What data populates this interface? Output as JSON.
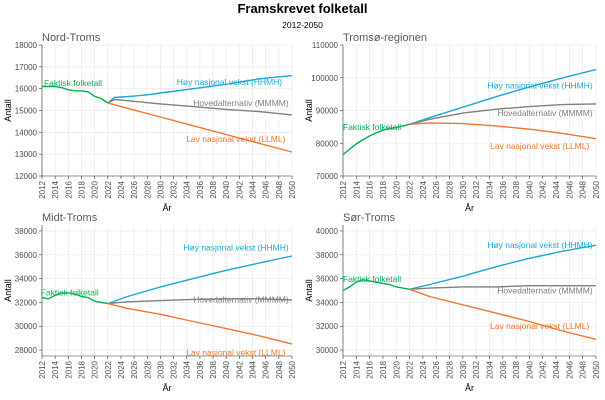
{
  "title": "Framskrevet folketall",
  "subtitle": "2012-2050",
  "colors": {
    "faktisk": "#00b050",
    "hoy": "#17a8d8",
    "hoved": "#7f7f7f",
    "lav": "#f4742b",
    "grid": "#ebebeb",
    "axis_text": "#4d4d4d",
    "panel_title": "#595959"
  },
  "chart_data": [
    {
      "type": "line",
      "title": "Nord-Troms",
      "xlabel": "År",
      "ylabel": "Antall",
      "xlim": [
        2012,
        2050
      ],
      "ylim": [
        12000,
        18000
      ],
      "x_ticks": [
        "2012",
        "2014",
        "2016",
        "2018",
        "2020",
        "2022",
        "2024",
        "2026",
        "2028",
        "2030",
        "2032",
        "2034",
        "2036",
        "2038",
        "2040",
        "2042",
        "2044",
        "2046",
        "2048",
        "2050"
      ],
      "y_ticks": [
        "12000",
        "13000",
        "14000",
        "15000",
        "16000",
        "17000",
        "18000"
      ],
      "series": [
        {
          "name": "Faktisk folketall",
          "color_key": "faktisk",
          "x": [
            2012,
            2013,
            2014,
            2015,
            2016,
            2017,
            2018,
            2019,
            2020,
            2021,
            2022
          ],
          "y": [
            16100,
            16100,
            16100,
            16050,
            15950,
            15900,
            15900,
            15850,
            15650,
            15550,
            15350
          ],
          "label_x": 2012.3,
          "label_y": 16250,
          "anchor": "start"
        },
        {
          "name": "Høy nasjonal vekst (HHMH)",
          "color_key": "hoy",
          "x": [
            2022,
            2023,
            2024,
            2026,
            2028,
            2030,
            2035,
            2040,
            2045,
            2050
          ],
          "y": [
            15350,
            15600,
            15620,
            15660,
            15720,
            15800,
            16000,
            16200,
            16450,
            16600
          ],
          "label_x": 2048.5,
          "label_y": 16300,
          "anchor": "end"
        },
        {
          "name": "Hovedalternativ (MMMM)",
          "color_key": "hoved",
          "x": [
            2022,
            2023,
            2025,
            2030,
            2035,
            2040,
            2045,
            2050
          ],
          "y": [
            15350,
            15500,
            15450,
            15300,
            15180,
            15050,
            14950,
            14800
          ],
          "label_x": 2049.5,
          "label_y": 15350,
          "anchor": "end"
        },
        {
          "name": "Lav nasjonal vekst (LLML)",
          "color_key": "lav",
          "x": [
            2022,
            2025,
            2030,
            2035,
            2040,
            2045,
            2050
          ],
          "y": [
            15350,
            15100,
            14700,
            14300,
            13900,
            13500,
            13100
          ],
          "label_x": 2049,
          "label_y": 13700,
          "anchor": "end"
        }
      ]
    },
    {
      "type": "line",
      "title": "Tromsø-regionen",
      "xlabel": "År",
      "ylabel": "Antall",
      "xlim": [
        2012,
        2050
      ],
      "ylim": [
        70000,
        110000
      ],
      "x_ticks": [
        "2012",
        "2014",
        "2016",
        "2018",
        "2020",
        "2022",
        "2024",
        "2026",
        "2028",
        "2030",
        "2032",
        "2034",
        "2036",
        "2038",
        "2040",
        "2042",
        "2044",
        "2046",
        "2048",
        "2050"
      ],
      "y_ticks": [
        "70000",
        "80000",
        "90000",
        "100000",
        "110000"
      ],
      "series": [
        {
          "name": "Faktisk folketall",
          "color_key": "faktisk",
          "x": [
            2012,
            2013,
            2014,
            2015,
            2016,
            2017,
            2018,
            2019,
            2020,
            2021,
            2022
          ],
          "y": [
            76500,
            78200,
            79800,
            81100,
            82200,
            83200,
            84000,
            84500,
            84800,
            85300,
            85800
          ],
          "label_x": 2012,
          "label_y": 85000,
          "anchor": "start"
        },
        {
          "name": "Høy nasjonal vekst (HHMH)",
          "color_key": "hoy",
          "x": [
            2022,
            2025,
            2030,
            2035,
            2040,
            2045,
            2050
          ],
          "y": [
            85800,
            87800,
            91000,
            94200,
            97200,
            100000,
            102500
          ],
          "label_x": 2049.5,
          "label_y": 97600,
          "anchor": "end"
        },
        {
          "name": "Hovedalternativ (MMMM)",
          "color_key": "hoved",
          "x": [
            2022,
            2025,
            2030,
            2035,
            2040,
            2045,
            2050
          ],
          "y": [
            85800,
            87300,
            89200,
            90400,
            91200,
            91800,
            92000
          ],
          "label_x": 2049.5,
          "label_y": 89200,
          "anchor": "end"
        },
        {
          "name": "Lav nasjonal vekst (LLML)",
          "color_key": "lav",
          "x": [
            2022,
            2025,
            2030,
            2035,
            2040,
            2045,
            2050
          ],
          "y": [
            85800,
            86200,
            86000,
            85300,
            84300,
            83000,
            81400
          ],
          "label_x": 2049,
          "label_y": 79200,
          "anchor": "end"
        }
      ]
    },
    {
      "type": "line",
      "title": "Midt-Troms",
      "xlabel": "År",
      "ylabel": "Antall",
      "xlim": [
        2012,
        2050
      ],
      "ylim": [
        27500,
        38500
      ],
      "x_ticks": [
        "2012",
        "2014",
        "2016",
        "2018",
        "2020",
        "2022",
        "2024",
        "2026",
        "2028",
        "2030",
        "2032",
        "2034",
        "2036",
        "2038",
        "2040",
        "2042",
        "2044",
        "2046",
        "2048",
        "2050"
      ],
      "y_ticks": [
        "28000",
        "30000",
        "32000",
        "34000",
        "36000",
        "38000"
      ],
      "series": [
        {
          "name": "Faktisk folketall",
          "color_key": "faktisk",
          "x": [
            2012,
            2013,
            2014,
            2015,
            2016,
            2017,
            2018,
            2019,
            2020,
            2021,
            2022
          ],
          "y": [
            32400,
            32300,
            32600,
            32800,
            32800,
            32700,
            32500,
            32400,
            32100,
            32000,
            31900
          ],
          "label_x": 2011.8,
          "label_y": 32850,
          "anchor": "start"
        },
        {
          "name": "Høy nasjonal vekst (HHMH)",
          "color_key": "hoy",
          "x": [
            2022,
            2025,
            2030,
            2035,
            2040,
            2045,
            2050
          ],
          "y": [
            31900,
            32500,
            33300,
            34000,
            34700,
            35300,
            35900
          ],
          "label_x": 2049.5,
          "label_y": 36600,
          "anchor": "end"
        },
        {
          "name": "Hovedalternativ (MMMM)",
          "color_key": "hoved",
          "x": [
            2022,
            2025,
            2030,
            2035,
            2040,
            2045,
            2050
          ],
          "y": [
            31900,
            32050,
            32150,
            32250,
            32300,
            32300,
            32200
          ],
          "label_x": 2049.5,
          "label_y": 32250,
          "anchor": "end"
        },
        {
          "name": "Lav nasjonal vekst (LLML)",
          "color_key": "lav",
          "x": [
            2022,
            2025,
            2030,
            2035,
            2040,
            2045,
            2050
          ],
          "y": [
            31900,
            31500,
            31000,
            30400,
            29800,
            29200,
            28500
          ],
          "label_x": 2049,
          "label_y": 27800,
          "anchor": "end"
        }
      ]
    },
    {
      "type": "line",
      "title": "Sør-Troms",
      "xlabel": "År",
      "ylabel": "Antall",
      "xlim": [
        2012,
        2050
      ],
      "ylim": [
        29500,
        40500
      ],
      "x_ticks": [
        "2012",
        "2014",
        "2016",
        "2018",
        "2020",
        "2022",
        "2024",
        "2026",
        "2028",
        "2030",
        "2032",
        "2034",
        "2036",
        "2038",
        "2040",
        "2042",
        "2044",
        "2046",
        "2048",
        "2050"
      ],
      "y_ticks": [
        "30000",
        "32000",
        "34000",
        "36000",
        "38000",
        "40000"
      ],
      "series": [
        {
          "name": "Faktisk folketall",
          "color_key": "faktisk",
          "x": [
            2012,
            2013,
            2014,
            2015,
            2016,
            2017,
            2018,
            2019,
            2020,
            2021,
            2022
          ],
          "y": [
            35000,
            35300,
            35700,
            35900,
            35800,
            35700,
            35600,
            35500,
            35300,
            35200,
            35100
          ],
          "label_x": 2012,
          "label_y": 35950,
          "anchor": "start"
        },
        {
          "name": "Høy nasjonal vekst (HHMH)",
          "color_key": "hoy",
          "x": [
            2022,
            2025,
            2030,
            2035,
            2040,
            2045,
            2050
          ],
          "y": [
            35100,
            35500,
            36200,
            37000,
            37700,
            38300,
            38800
          ],
          "label_x": 2049.5,
          "label_y": 38800,
          "anchor": "end"
        },
        {
          "name": "Hovedalternativ (MMMM)",
          "color_key": "hoved",
          "x": [
            2022,
            2025,
            2030,
            2035,
            2040,
            2045,
            2050
          ],
          "y": [
            35100,
            35200,
            35300,
            35300,
            35400,
            35400,
            35400
          ],
          "label_x": 2049.5,
          "label_y": 35000,
          "anchor": "end"
        },
        {
          "name": "Lav nasjonal vekst (LLML)",
          "color_key": "lav",
          "x": [
            2022,
            2025,
            2030,
            2035,
            2040,
            2045,
            2050
          ],
          "y": [
            35100,
            34500,
            33800,
            33100,
            32400,
            31600,
            30900
          ],
          "label_x": 2049,
          "label_y": 32000,
          "anchor": "end"
        }
      ]
    }
  ]
}
